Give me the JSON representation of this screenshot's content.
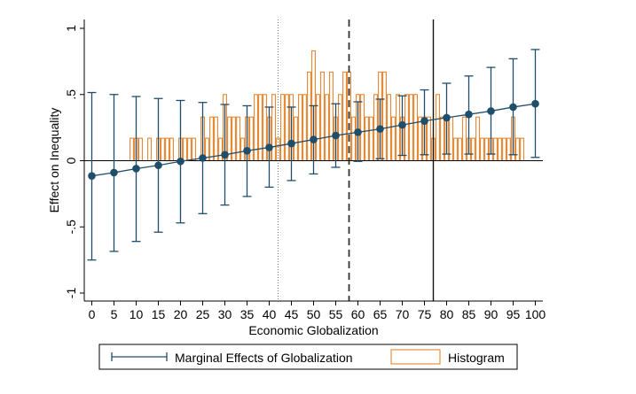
{
  "chart_data": {
    "type": "line",
    "title": "",
    "xlabel": "Economic Globalization",
    "ylabel": "Effect on Inequality",
    "xlim": [
      0,
      100
    ],
    "ylim": [
      -1,
      1
    ],
    "x_ticks": [
      0,
      5,
      10,
      15,
      20,
      25,
      30,
      35,
      40,
      45,
      50,
      55,
      60,
      65,
      70,
      75,
      80,
      85,
      90,
      95,
      100
    ],
    "x_tick_labels": [
      "0",
      "5",
      "10",
      "15",
      "20",
      "25",
      "30",
      "35",
      "40",
      "45",
      "50",
      "55",
      "60",
      "65",
      "70",
      "75",
      "80",
      "85",
      "90",
      "95",
      "100"
    ],
    "y_ticks": [
      -1,
      -0.5,
      0,
      0.5,
      1
    ],
    "y_tick_labels": [
      "-1",
      "-.5",
      "0",
      ".5",
      "1"
    ],
    "grid": false,
    "legend_position": "bottom",
    "colors": {
      "effects": "#1f4e6b",
      "histogram": "#e07b1e",
      "axis": "#000000"
    },
    "series": [
      {
        "name": "Marginal Effects of Globalization",
        "type": "line-with-ci",
        "x": [
          0,
          5,
          10,
          15,
          20,
          25,
          30,
          35,
          40,
          45,
          50,
          55,
          60,
          65,
          70,
          75,
          80,
          85,
          90,
          95,
          100
        ],
        "y": [
          -0.115,
          -0.09,
          -0.06,
          -0.035,
          -0.005,
          0.02,
          0.045,
          0.075,
          0.1,
          0.13,
          0.16,
          0.19,
          0.215,
          0.24,
          0.27,
          0.3,
          0.325,
          0.35,
          0.375,
          0.405,
          0.43
        ],
        "ci_low": [
          -0.75,
          -0.685,
          -0.61,
          -0.54,
          -0.47,
          -0.4,
          -0.335,
          -0.27,
          -0.2,
          -0.15,
          -0.1,
          -0.05,
          -0.005,
          0.015,
          0.04,
          0.045,
          0.05,
          0.05,
          0.05,
          0.045,
          0.025
        ],
        "ci_high": [
          0.515,
          0.5,
          0.485,
          0.47,
          0.455,
          0.44,
          0.425,
          0.415,
          0.405,
          0.405,
          0.415,
          0.43,
          0.445,
          0.465,
          0.49,
          0.535,
          0.585,
          0.64,
          0.705,
          0.77,
          0.84
        ]
      },
      {
        "name": "Histogram",
        "type": "histogram",
        "x": [
          9,
          10,
          11,
          12,
          13,
          14,
          15,
          16,
          17,
          18,
          19,
          20,
          21,
          22,
          23,
          24,
          25,
          26,
          27,
          28,
          29,
          30,
          31,
          32,
          33,
          34,
          35,
          36,
          37,
          38,
          39,
          40,
          41,
          42,
          43,
          44,
          45,
          46,
          47,
          48,
          49,
          50,
          51,
          52,
          53,
          54,
          55,
          56,
          57,
          58,
          59,
          60,
          61,
          62,
          63,
          64,
          65,
          66,
          67,
          68,
          69,
          70,
          71,
          72,
          73,
          74,
          75,
          76,
          77,
          78,
          79,
          80,
          81,
          82,
          83,
          84,
          85,
          86,
          87,
          88,
          89,
          90,
          91,
          92,
          93,
          94,
          95,
          96,
          97
        ],
        "values": [
          0.17,
          0.17,
          0.17,
          0,
          0.17,
          0,
          0.17,
          0.17,
          0.17,
          0.17,
          0,
          0.17,
          0.17,
          0.17,
          0.17,
          0,
          0.33,
          0.17,
          0.33,
          0.33,
          0.17,
          0.5,
          0.33,
          0.33,
          0.33,
          0.17,
          0.33,
          0.33,
          0.5,
          0.5,
          0.5,
          0.33,
          0.5,
          0.17,
          0.5,
          0.5,
          0.5,
          0.33,
          0.5,
          0.5,
          0.67,
          0.83,
          0.5,
          0.67,
          0.5,
          0.67,
          0.33,
          0.5,
          0.67,
          0.67,
          0.33,
          0.5,
          0.5,
          0.33,
          0.33,
          0.5,
          0.67,
          0.67,
          0.5,
          0.33,
          0.5,
          0.33,
          0.5,
          0.5,
          0.5,
          0.33,
          0.33,
          0.33,
          0.17,
          0.5,
          0.33,
          0.33,
          0.33,
          0.17,
          0.17,
          0.33,
          0.17,
          0.17,
          0.33,
          0.17,
          0.17,
          0.17,
          0.17,
          0.17,
          0.17,
          0.17,
          0.33,
          0.17,
          0.17
        ]
      }
    ],
    "reference_lines": [
      {
        "axis": "x",
        "value": 42,
        "style": "dotted"
      },
      {
        "axis": "x",
        "value": 58,
        "style": "dashed"
      },
      {
        "axis": "x",
        "value": 77,
        "style": "solid"
      }
    ]
  }
}
